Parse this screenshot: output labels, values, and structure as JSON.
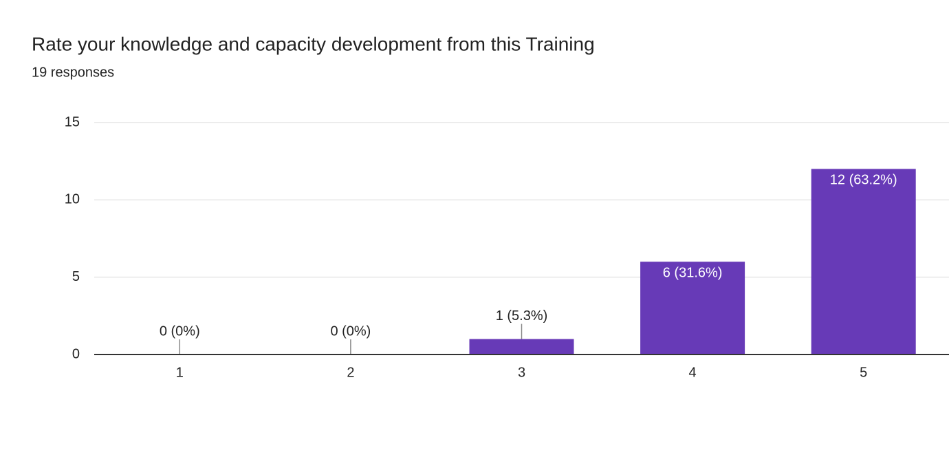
{
  "chart_data": {
    "type": "bar",
    "title": "Rate your knowledge and capacity development from this Training",
    "subtitle": "19 responses",
    "categories": [
      "1",
      "2",
      "3",
      "4",
      "5"
    ],
    "values": [
      0,
      0,
      1,
      6,
      12
    ],
    "value_labels": [
      "0 (0%)",
      "0 (0%)",
      "1 (5.3%)",
      "6 (31.6%)",
      "12 (63.2%)"
    ],
    "color": "#673ab7",
    "ylim": [
      0,
      15
    ],
    "yticks": [
      0,
      5,
      10,
      15
    ],
    "grid": true
  }
}
